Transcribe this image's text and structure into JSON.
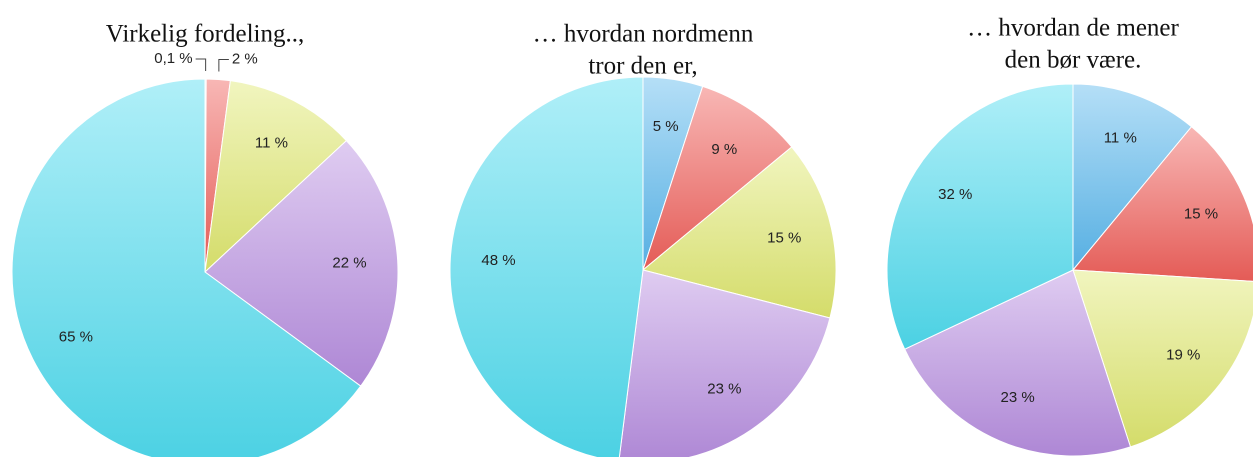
{
  "chart_data": [
    {
      "type": "pie",
      "title": [
        "Virkelig fordeling..,"
      ],
      "values": [
        0.1,
        2,
        11,
        22,
        65
      ],
      "value_labels": [
        "0,1 %",
        "2 %",
        "11 %",
        "22 %",
        "65 %"
      ],
      "colors": [
        "#5bb8ee",
        "#f0605a",
        "#dfe870",
        "#b78ee0",
        "#4fdcef"
      ]
    },
    {
      "type": "pie",
      "title": [
        "… hvordan nordmenn",
        "tror den er,"
      ],
      "values": [
        5,
        9,
        15,
        23,
        48
      ],
      "value_labels": [
        "5 %",
        "9 %",
        "15 %",
        "23 %",
        "48 %"
      ],
      "colors": [
        "#5bb8ee",
        "#f0605a",
        "#dfe870",
        "#b78ee0",
        "#4fdcef"
      ]
    },
    {
      "type": "pie",
      "title": [
        "… hvordan de mener",
        "den bør være."
      ],
      "values": [
        11,
        15,
        19,
        23,
        32
      ],
      "value_labels": [
        "11 %",
        "15 %",
        "19 %",
        "23 %",
        "32 %"
      ],
      "colors": [
        "#5bb8ee",
        "#f0605a",
        "#dfe870",
        "#b78ee0",
        "#4fdcef"
      ]
    }
  ]
}
